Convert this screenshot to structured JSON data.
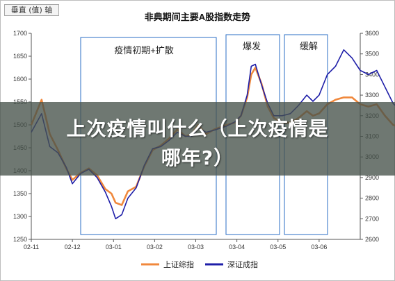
{
  "corner_tag": "垂直 (值) 轴",
  "overlay": {
    "line1": "上次疫情叫什么（上次疫情是",
    "line2": "哪年?）"
  },
  "chart_data": {
    "type": "line",
    "title": "非典期间主要A股指数走势",
    "x_ticks": [
      "02-11",
      "02-12",
      "03-01",
      "03-02",
      "03-03",
      "03-04",
      "03-05",
      "03-06"
    ],
    "y_left": {
      "ticks": [
        1250,
        1300,
        1350,
        1400,
        1450,
        1500,
        1550,
        1600,
        1650,
        1700
      ],
      "lim": [
        1250,
        1700
      ]
    },
    "y_right": {
      "ticks": [
        2600,
        2700,
        2800,
        2900,
        3000,
        3100,
        3200,
        3300,
        3400,
        3500,
        3600
      ],
      "lim": [
        2600,
        3600
      ]
    },
    "annotations": [
      {
        "label": "疫情初期+扩散",
        "from": "02-12",
        "to": "03-03"
      },
      {
        "label": "爆发",
        "from": "03-03",
        "to": "03-05"
      },
      {
        "label": "缓解",
        "from": "03-05",
        "to": "03-06"
      }
    ],
    "legend": {
      "position": "bottom"
    },
    "grid": false,
    "colors": {
      "sh": "#f0883c",
      "sz": "#1e1ea8"
    },
    "series": [
      {
        "name": "上证综指",
        "axis": "left",
        "x": [
          0.0,
          0.25,
          0.45,
          0.65,
          0.85,
          1.0,
          1.2,
          1.4,
          1.6,
          1.8,
          1.95,
          2.05,
          2.2,
          2.35,
          2.55,
          2.75,
          2.95,
          3.15,
          3.35,
          3.55,
          3.75,
          3.9,
          4.05,
          4.25,
          4.45,
          4.6,
          4.75,
          4.95,
          5.1,
          5.25,
          5.35,
          5.45,
          5.6,
          5.75,
          5.9,
          6.1,
          6.3,
          6.5,
          6.7,
          6.85,
          7.0,
          7.2,
          7.4,
          7.6,
          7.8,
          8.0,
          8.2,
          8.4,
          8.6,
          8.8,
          8.95
        ],
        "values": [
          1500,
          1555,
          1480,
          1445,
          1405,
          1380,
          1395,
          1405,
          1390,
          1360,
          1350,
          1330,
          1325,
          1355,
          1365,
          1410,
          1445,
          1455,
          1470,
          1490,
          1475,
          1480,
          1500,
          1480,
          1490,
          1495,
          1500,
          1505,
          1520,
          1560,
          1610,
          1625,
          1590,
          1540,
          1515,
          1505,
          1505,
          1515,
          1530,
          1520,
          1525,
          1545,
          1555,
          1560,
          1560,
          1545,
          1540,
          1545,
          1520,
          1500,
          1495
        ]
      },
      {
        "name": "深证成指",
        "axis": "right",
        "x": [
          0.0,
          0.25,
          0.45,
          0.65,
          0.85,
          1.0,
          1.2,
          1.4,
          1.6,
          1.8,
          1.95,
          2.05,
          2.2,
          2.35,
          2.55,
          2.75,
          2.95,
          3.15,
          3.35,
          3.55,
          3.75,
          3.9,
          4.05,
          4.25,
          4.45,
          4.6,
          4.75,
          4.95,
          5.1,
          5.25,
          5.35,
          5.45,
          5.6,
          5.75,
          5.9,
          6.1,
          6.3,
          6.5,
          6.7,
          6.85,
          7.0,
          7.2,
          7.4,
          7.6,
          7.8,
          8.0,
          8.2,
          8.4,
          8.6,
          8.8,
          8.95
        ],
        "values": [
          3120,
          3210,
          3050,
          3020,
          2950,
          2870,
          2920,
          2940,
          2900,
          2830,
          2760,
          2700,
          2720,
          2800,
          2850,
          2960,
          3040,
          3050,
          3080,
          3120,
          3100,
          3100,
          3140,
          3120,
          3130,
          3140,
          3150,
          3170,
          3200,
          3300,
          3440,
          3450,
          3350,
          3260,
          3200,
          3200,
          3210,
          3250,
          3300,
          3270,
          3300,
          3400,
          3440,
          3520,
          3480,
          3420,
          3400,
          3420,
          3340,
          3260,
          3230
        ]
      }
    ]
  }
}
